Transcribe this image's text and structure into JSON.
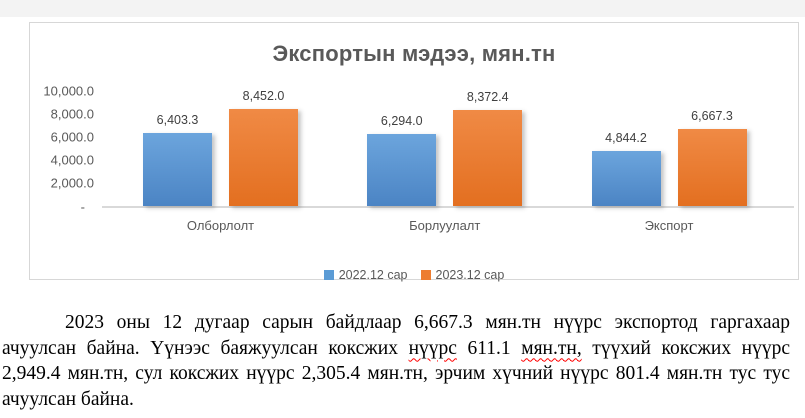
{
  "page": {
    "background": "#ffffff",
    "top_strip_color": "#f3f3f3"
  },
  "chart_data": {
    "type": "bar",
    "title": "Экспортын мэдээ, мян.тн",
    "categories": [
      "Олборлолт",
      "Борлуулалт",
      "Экспорт"
    ],
    "series": [
      {
        "name": "2022.12 сар",
        "color": "#5B9BD5",
        "fill_top": "#6CA5DD",
        "fill_bottom": "#4B84C4",
        "values": [
          6403.3,
          6294.0,
          4844.2
        ],
        "data_labels": [
          "6,403.3",
          "6,294.0",
          "4,844.2"
        ]
      },
      {
        "name": "2023.12 сар",
        "color": "#ED7D31",
        "fill_top": "#F08A45",
        "fill_bottom": "#E36F20",
        "values": [
          8452.0,
          8372.4,
          6667.3
        ],
        "data_labels": [
          "8,452.0",
          "8,372.4",
          "6,667.3"
        ]
      }
    ],
    "y_axis": {
      "max": 10000,
      "tick_values": [
        10000,
        8000,
        6000,
        4000,
        2000,
        0
      ],
      "tick_labels": [
        "10,000.0",
        "8,000.0",
        "6,000.0",
        "4,000.0",
        "2,000.0",
        "-"
      ]
    },
    "ylim": [
      0,
      10000
    ],
    "legend_position": "bottom",
    "gridlines": false
  },
  "paragraph": {
    "lines": [
      {
        "indent": true,
        "justify": true,
        "segments": [
          {
            "text": "2023 оны 12 дугаар сарын байдлаар 6,667.3 мян.тн нүүрс экспортод гаргахаар"
          }
        ]
      },
      {
        "justify": true,
        "segments": [
          {
            "text": "ачуулсан байна. Үүнээс баяжуулсан коксжих "
          },
          {
            "text": "нүүрс",
            "spellcheck": true
          },
          {
            "text": " 611.1 "
          },
          {
            "text": "мян.тн,",
            "spellcheck": true
          },
          {
            "text": " түүхий коксжих нүүрс"
          }
        ]
      },
      {
        "justify": true,
        "segments": [
          {
            "text": "2,949.4 мян.тн, сул коксжих нүүрс 2,305.4 мян.тн, эрчим хүчний нүүрс 801.4 мян.тн тус тус"
          }
        ]
      },
      {
        "segments": [
          {
            "text": "ачуулсан байна."
          }
        ]
      }
    ]
  }
}
